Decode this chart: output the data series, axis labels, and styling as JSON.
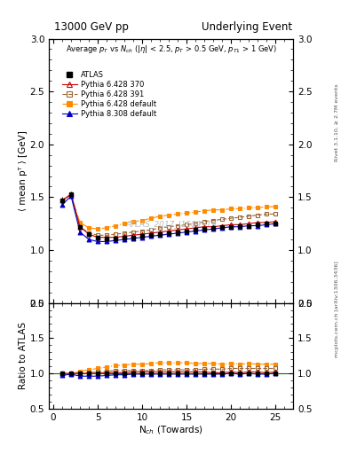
{
  "title_left": "13000 GeV pp",
  "title_right": "Underlying Event",
  "right_label_top": "Rivet 3.1.10, ≥ 2.7M events",
  "right_label_bottom": "mcplots.cern.ch [arXiv:1306.3436]",
  "watermark": "ATLAS_2017_I1509919",
  "ylabel_main": "⟨ mean pᵀ ⟩ [GeV]",
  "ylabel_ratio": "Ratio to ATLAS",
  "xlabel": "N$_{ch}$ (Towards)",
  "ylim_main": [
    0.5,
    3.0
  ],
  "ylim_ratio": [
    0.5,
    2.0
  ],
  "yticks_main": [
    0.5,
    1.0,
    1.5,
    2.0,
    2.5,
    3.0
  ],
  "yticks_ratio": [
    0.5,
    1.0,
    1.5,
    2.0
  ],
  "xlim": [
    -0.5,
    27
  ],
  "xticks": [
    0,
    5,
    10,
    15,
    20,
    25
  ],
  "nch_atlas": [
    1,
    2,
    3,
    4,
    5,
    6,
    7,
    8,
    9,
    10,
    11,
    12,
    13,
    14,
    15,
    16,
    17,
    18,
    19,
    20,
    21,
    22,
    23,
    24,
    25
  ],
  "atlas_main": [
    1.47,
    1.53,
    1.22,
    1.15,
    1.12,
    1.11,
    1.11,
    1.12,
    1.12,
    1.13,
    1.14,
    1.15,
    1.16,
    1.17,
    1.18,
    1.19,
    1.2,
    1.21,
    1.22,
    1.22,
    1.23,
    1.23,
    1.24,
    1.25,
    1.25
  ],
  "atlas_err": [
    0.03,
    0.02,
    0.01,
    0.01,
    0.01,
    0.01,
    0.01,
    0.01,
    0.01,
    0.01,
    0.01,
    0.01,
    0.01,
    0.01,
    0.01,
    0.01,
    0.01,
    0.01,
    0.01,
    0.01,
    0.01,
    0.01,
    0.01,
    0.01,
    0.01
  ],
  "p6_370_main": [
    1.47,
    1.53,
    1.22,
    1.15,
    1.12,
    1.12,
    1.12,
    1.13,
    1.14,
    1.15,
    1.16,
    1.17,
    1.18,
    1.19,
    1.2,
    1.21,
    1.22,
    1.22,
    1.23,
    1.24,
    1.24,
    1.25,
    1.26,
    1.26,
    1.27
  ],
  "p6_391_main": [
    1.47,
    1.52,
    1.22,
    1.16,
    1.14,
    1.14,
    1.15,
    1.16,
    1.17,
    1.18,
    1.19,
    1.21,
    1.22,
    1.23,
    1.24,
    1.25,
    1.27,
    1.28,
    1.29,
    1.3,
    1.31,
    1.32,
    1.33,
    1.34,
    1.34
  ],
  "p6_def_main": [
    1.47,
    1.52,
    1.26,
    1.21,
    1.2,
    1.21,
    1.23,
    1.25,
    1.27,
    1.28,
    1.3,
    1.32,
    1.33,
    1.34,
    1.35,
    1.36,
    1.37,
    1.38,
    1.38,
    1.39,
    1.39,
    1.4,
    1.4,
    1.41,
    1.41
  ],
  "p8_def_main": [
    1.43,
    1.51,
    1.17,
    1.1,
    1.08,
    1.08,
    1.09,
    1.1,
    1.11,
    1.12,
    1.13,
    1.14,
    1.15,
    1.16,
    1.17,
    1.18,
    1.19,
    1.2,
    1.21,
    1.22,
    1.22,
    1.23,
    1.23,
    1.24,
    1.25
  ],
  "p6_370_ratio": [
    1.0,
    1.0,
    1.0,
    1.0,
    1.0,
    1.01,
    1.01,
    1.01,
    1.02,
    1.02,
    1.02,
    1.02,
    1.02,
    1.02,
    1.02,
    1.02,
    1.02,
    1.01,
    1.01,
    1.02,
    1.01,
    1.02,
    1.02,
    1.01,
    1.02
  ],
  "p6_391_ratio": [
    1.0,
    0.99,
    1.0,
    1.01,
    1.02,
    1.03,
    1.04,
    1.04,
    1.04,
    1.04,
    1.04,
    1.05,
    1.05,
    1.05,
    1.05,
    1.05,
    1.06,
    1.06,
    1.06,
    1.07,
    1.07,
    1.07,
    1.07,
    1.07,
    1.07
  ],
  "p6_def_ratio": [
    1.0,
    0.99,
    1.03,
    1.05,
    1.07,
    1.09,
    1.11,
    1.12,
    1.13,
    1.13,
    1.14,
    1.15,
    1.15,
    1.15,
    1.15,
    1.14,
    1.14,
    1.14,
    1.13,
    1.14,
    1.13,
    1.14,
    1.13,
    1.13,
    1.13
  ],
  "p8_def_ratio": [
    0.97,
    0.99,
    0.96,
    0.96,
    0.96,
    0.97,
    0.98,
    0.98,
    0.99,
    0.99,
    0.99,
    0.99,
    0.99,
    0.99,
    0.99,
    0.99,
    0.99,
    0.99,
    0.99,
    1.0,
    0.99,
    1.0,
    0.99,
    0.99,
    1.0
  ],
  "color_atlas": "#000000",
  "color_p6_370": "#cc0000",
  "color_p6_391": "#996633",
  "color_p6_def": "#ff8c00",
  "color_p8_def": "#0000cc",
  "legend_entries": [
    "ATLAS",
    "Pythia 6.428 370",
    "Pythia 6.428 391",
    "Pythia 6.428 default",
    "Pythia 8.308 default"
  ]
}
